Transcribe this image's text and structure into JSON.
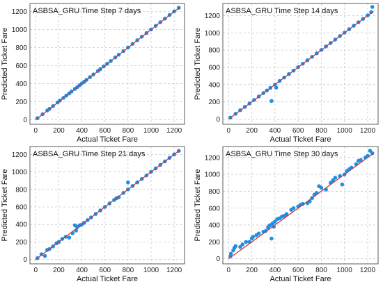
{
  "colors": {
    "points": "#1f8fe5",
    "line": "#e0201f"
  },
  "chart_data": [
    {
      "type": "scatter",
      "title": "ASBSA_GRU Time Step 7 days",
      "xlabel": "Actual Ticket Fare",
      "ylabel": "Predicted Ticket Fare",
      "xlim": [
        -50,
        1290
      ],
      "ylim": [
        -50,
        1290
      ],
      "xticks": [
        0,
        200,
        400,
        600,
        800,
        1000,
        1200
      ],
      "yticks": [
        0,
        200,
        400,
        600,
        800,
        1000,
        1200
      ],
      "grid": true,
      "reference_line": [
        [
          0,
          0
        ],
        [
          1250,
          1250
        ]
      ],
      "x": [
        15,
        60,
        100,
        120,
        150,
        190,
        210,
        240,
        265,
        290,
        310,
        340,
        360,
        380,
        400,
        420,
        440,
        470,
        500,
        540,
        560,
        590,
        620,
        650,
        690,
        720,
        760,
        800,
        840,
        880,
        920,
        960,
        1000,
        1040,
        1080,
        1120,
        1160,
        1200,
        1240
      ],
      "y": [
        18,
        62,
        103,
        122,
        152,
        192,
        214,
        243,
        268,
        292,
        314,
        343,
        362,
        383,
        404,
        422,
        443,
        473,
        503,
        542,
        562,
        593,
        622,
        652,
        692,
        722,
        762,
        802,
        842,
        882,
        922,
        962,
        1002,
        1042,
        1082,
        1122,
        1162,
        1202,
        1242
      ]
    },
    {
      "type": "scatter",
      "title": "ASBSA_GRU Time Step 14 days",
      "xlabel": "Actual Ticket Fare",
      "ylabel": "Predicted Ticket Fare",
      "xlim": [
        -50,
        1290
      ],
      "ylim": [
        -60,
        1340
      ],
      "xticks": [
        0,
        200,
        400,
        600,
        800,
        1000,
        1200
      ],
      "yticks": [
        0,
        200,
        400,
        600,
        800,
        1000,
        1200
      ],
      "grid": true,
      "reference_line": [
        [
          0,
          0
        ],
        [
          1250,
          1250
        ]
      ],
      "x": [
        15,
        60,
        100,
        140,
        180,
        220,
        260,
        300,
        330,
        360,
        370,
        400,
        410,
        440,
        480,
        520,
        560,
        600,
        640,
        680,
        720,
        760,
        800,
        840,
        880,
        920,
        960,
        1000,
        1040,
        1080,
        1120,
        1160,
        1200,
        1230,
        1240
      ],
      "y": [
        18,
        62,
        103,
        142,
        182,
        222,
        262,
        302,
        332,
        362,
        210,
        400,
        365,
        442,
        482,
        522,
        562,
        602,
        642,
        682,
        722,
        762,
        802,
        842,
        882,
        922,
        962,
        1002,
        1042,
        1082,
        1122,
        1162,
        1202,
        1240,
        1300
      ]
    },
    {
      "type": "scatter",
      "title": "ASBSA_GRU Time Step 21 days",
      "xlabel": "Actual Ticket Fare",
      "ylabel": "Predicted Ticket Fare",
      "xlim": [
        -50,
        1290
      ],
      "ylim": [
        -50,
        1290
      ],
      "xticks": [
        0,
        200,
        400,
        600,
        800,
        1000,
        1200
      ],
      "yticks": [
        0,
        200,
        400,
        600,
        800,
        1000,
        1200
      ],
      "grid": true,
      "reference_line": [
        [
          0,
          0
        ],
        [
          1250,
          1250
        ]
      ],
      "x": [
        15,
        50,
        80,
        100,
        120,
        150,
        180,
        200,
        230,
        260,
        290,
        320,
        340,
        350,
        360,
        380,
        400,
        420,
        450,
        480,
        520,
        560,
        600,
        640,
        680,
        700,
        720,
        760,
        800,
        800,
        840,
        880,
        920,
        960,
        1000,
        1040,
        1080,
        1120,
        1160,
        1200,
        1240
      ],
      "y": [
        15,
        60,
        40,
        110,
        120,
        150,
        185,
        200,
        235,
        260,
        250,
        300,
        390,
        330,
        370,
        390,
        400,
        420,
        450,
        480,
        520,
        560,
        600,
        640,
        680,
        700,
        710,
        760,
        880,
        800,
        840,
        880,
        920,
        960,
        1000,
        1040,
        1080,
        1120,
        1160,
        1200,
        1240
      ]
    },
    {
      "type": "scatter",
      "title": "ASBSA_GRU Time Step 30 days",
      "xlabel": "Actual Ticket Fare",
      "ylabel": "Predicted Ticket Fare",
      "xlim": [
        -50,
        1290
      ],
      "ylim": [
        -60,
        1330
      ],
      "xticks": [
        0,
        200,
        400,
        600,
        800,
        1000,
        1200
      ],
      "yticks": [
        0,
        200,
        400,
        600,
        800,
        1000,
        1200
      ],
      "grid": true,
      "reference_line": [
        [
          0,
          0
        ],
        [
          1250,
          1250
        ]
      ],
      "x": [
        15,
        20,
        40,
        50,
        60,
        100,
        120,
        150,
        180,
        200,
        210,
        240,
        260,
        300,
        320,
        340,
        350,
        360,
        370,
        380,
        390,
        400,
        420,
        440,
        460,
        480,
        500,
        540,
        560,
        600,
        620,
        640,
        680,
        700,
        720,
        740,
        760,
        780,
        800,
        840,
        880,
        900,
        920,
        960,
        980,
        1000,
        1020,
        1040,
        1060,
        1100,
        1120,
        1140,
        1180,
        1200,
        1220,
        1240
      ],
      "y": [
        30,
        60,
        100,
        130,
        150,
        140,
        170,
        200,
        200,
        240,
        260,
        280,
        300,
        320,
        330,
        370,
        390,
        400,
        240,
        420,
        380,
        440,
        470,
        480,
        500,
        510,
        530,
        580,
        600,
        620,
        640,
        650,
        660,
        680,
        720,
        760,
        780,
        860,
        840,
        820,
        900,
        930,
        960,
        980,
        880,
        1000,
        1040,
        1060,
        1080,
        1120,
        1160,
        1170,
        1200,
        1220,
        1280,
        1250
      ]
    }
  ]
}
